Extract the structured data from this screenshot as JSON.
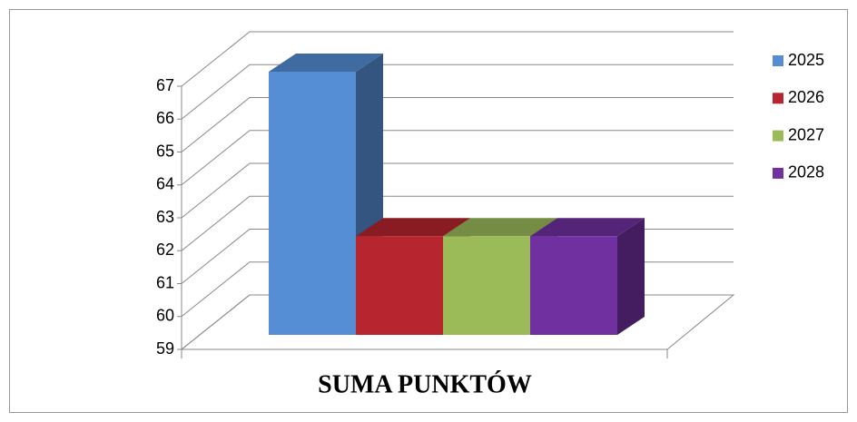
{
  "chart_data": {
    "type": "bar3d",
    "categories": [
      "SUMA PUNKTÓW"
    ],
    "series": [
      {
        "name": "2025",
        "color": "#558ed5",
        "values": [
          67
        ]
      },
      {
        "name": "2026",
        "color": "#b7252f",
        "values": [
          62
        ]
      },
      {
        "name": "2027",
        "color": "#9bbb59",
        "values": [
          62
        ]
      },
      {
        "name": "2028",
        "color": "#7030a0",
        "values": [
          62
        ]
      }
    ],
    "ylim": [
      59,
      67
    ],
    "yticks": [
      59,
      60,
      61,
      62,
      63,
      64,
      65,
      66,
      67
    ],
    "grid": true,
    "legend": "right"
  }
}
